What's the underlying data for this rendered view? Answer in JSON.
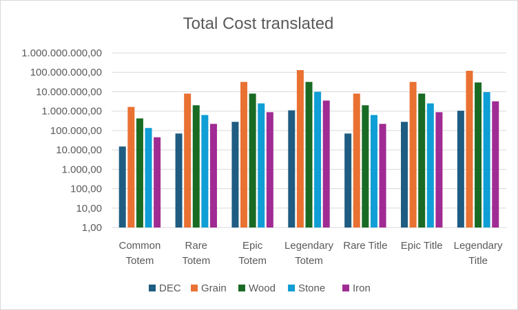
{
  "chart_data": {
    "type": "bar",
    "title": "Total Cost translated",
    "y_scale": "log10",
    "ylim": [
      1,
      1000000000
    ],
    "y_tick_labels": [
      "1.000.000.000,00",
      "100.000.000,00",
      "10.000.000,00",
      "1.000.000,00",
      "100.000,00",
      "10.000,00",
      "1.000,00",
      "100,00",
      "10,00",
      "1,00"
    ],
    "y_tick_values": [
      1000000000,
      100000000,
      10000000,
      1000000,
      100000,
      10000,
      1000,
      100,
      10,
      1
    ],
    "grid": true,
    "legend_position": "bottom",
    "categories": [
      [
        "Common",
        "Totem"
      ],
      [
        "Rare",
        "Totem"
      ],
      [
        "Epic",
        "Totem"
      ],
      [
        "Legendary",
        "Totem"
      ],
      [
        "Rare Title"
      ],
      [
        "Epic Title"
      ],
      [
        "Legendary",
        "Title"
      ]
    ],
    "series": [
      {
        "name": "DEC",
        "color": "#1f5c82",
        "values": [
          15000,
          70000,
          280000,
          1100000,
          70000,
          280000,
          1050000
        ]
      },
      {
        "name": "Grain",
        "color": "#e97132",
        "values": [
          1650000,
          8000000,
          32000000,
          130000000,
          8000000,
          32000000,
          120000000
        ]
      },
      {
        "name": "Wood",
        "color": "#196b24",
        "values": [
          420000,
          2000000,
          8000000,
          32000000,
          2000000,
          8000000,
          30000000
        ]
      },
      {
        "name": "Stone",
        "color": "#0f9ed5",
        "values": [
          135000,
          630000,
          2500000,
          10000000,
          630000,
          2500000,
          9500000
        ]
      },
      {
        "name": "Iron",
        "color": "#a02b93",
        "values": [
          45000,
          220000,
          880000,
          3500000,
          220000,
          880000,
          3200000
        ]
      }
    ]
  }
}
